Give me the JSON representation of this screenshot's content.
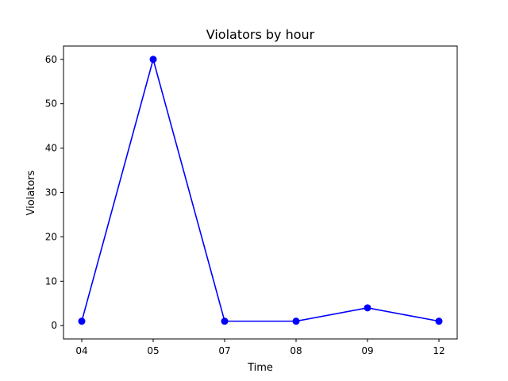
{
  "chart_data": {
    "type": "line",
    "title": "Violators by hour",
    "xlabel": "Time",
    "ylabel": "Violators",
    "categories": [
      "04",
      "05",
      "07",
      "08",
      "09",
      "12"
    ],
    "values": [
      1,
      60,
      1,
      1,
      4,
      1
    ],
    "yticks": [
      0,
      10,
      20,
      30,
      40,
      50,
      60
    ],
    "ylim": [
      -3,
      63
    ],
    "grid": false,
    "legend": "none",
    "color": "#0000ff",
    "marker": "circle"
  }
}
